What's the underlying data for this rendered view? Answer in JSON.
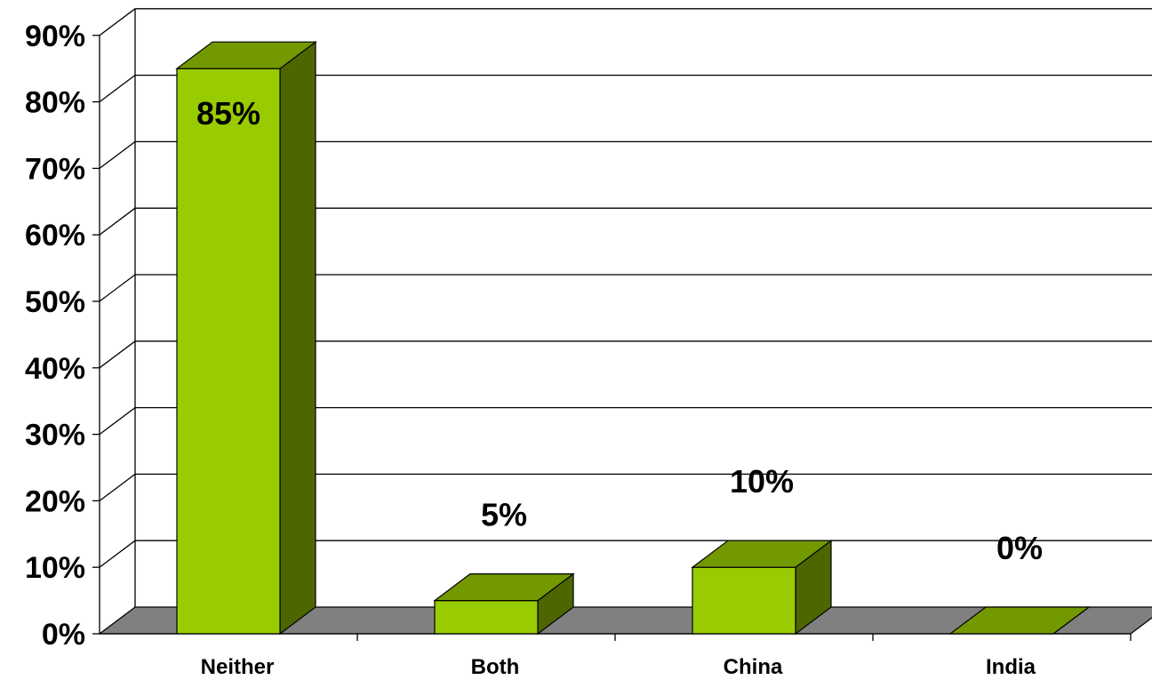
{
  "chart_data": {
    "type": "bar",
    "style": "3d",
    "categories": [
      "Neither",
      "Both",
      "China",
      "India"
    ],
    "values": [
      85,
      5,
      10,
      0
    ],
    "data_labels": [
      "85%",
      "5%",
      "10%",
      "0%"
    ],
    "ylim": [
      0,
      90
    ],
    "yticks": [
      0,
      10,
      20,
      30,
      40,
      50,
      60,
      70,
      80,
      90
    ],
    "ytick_labels": [
      "0%",
      "10%",
      "20%",
      "30%",
      "40%",
      "50%",
      "60%",
      "70%",
      "80%",
      "90%"
    ],
    "title": "",
    "xlabel": "",
    "ylabel": "",
    "grid": true,
    "legend": "none",
    "colors": {
      "bar_front": "#99CC00",
      "bar_top": "#739900",
      "bar_side": "#4D6600",
      "floor": "#808080",
      "gridline": "#000000"
    }
  }
}
